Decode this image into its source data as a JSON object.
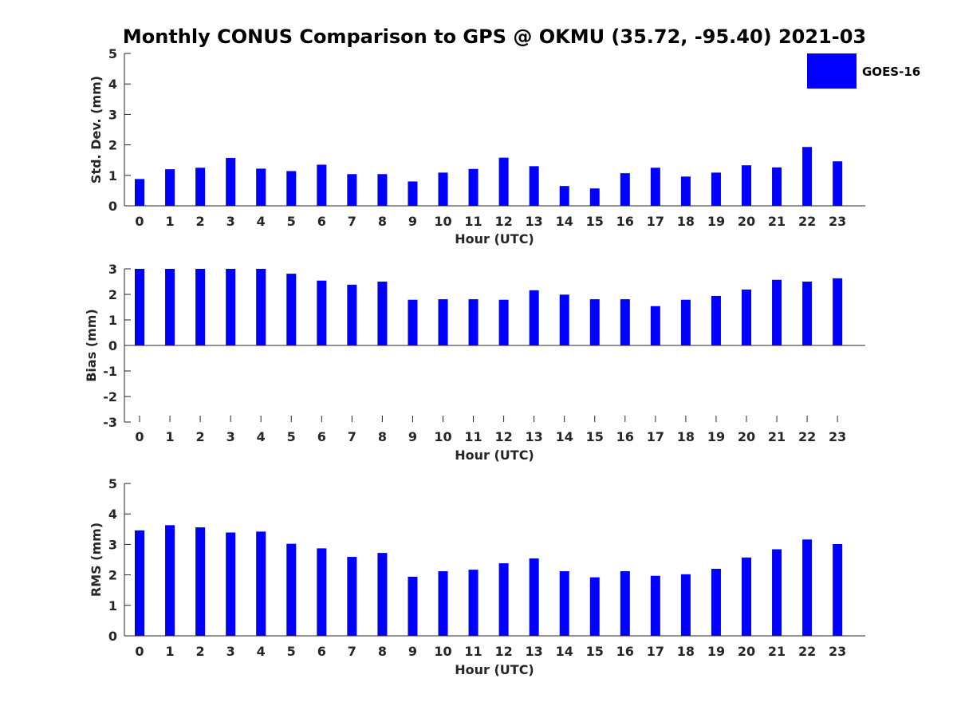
{
  "title": "Monthly CONUS Comparison to GPS @ OKMU (35.72, -95.40) 2021-03",
  "legend": {
    "label": "GOES-16",
    "location": "top-right"
  },
  "colors": {
    "bar": "#0000ff",
    "axis": "#262626",
    "title": "#000000"
  },
  "chart_data": [
    {
      "type": "bar",
      "title": "",
      "xlabel": "Hour (UTC)",
      "ylabel": "Std. Dev. (mm)",
      "ylim": [
        0,
        5
      ],
      "yticks": [
        0,
        1,
        2,
        3,
        4,
        5
      ],
      "categories": [
        "0",
        "1",
        "2",
        "3",
        "4",
        "5",
        "6",
        "7",
        "8",
        "9",
        "10",
        "11",
        "12",
        "13",
        "14",
        "15",
        "16",
        "17",
        "18",
        "19",
        "20",
        "21",
        "22",
        "23"
      ],
      "series": [
        {
          "name": "GOES-16",
          "values": [
            0.88,
            1.2,
            1.25,
            1.57,
            1.22,
            1.14,
            1.35,
            1.04,
            1.04,
            0.8,
            1.09,
            1.21,
            1.58,
            1.3,
            0.65,
            0.57,
            1.07,
            1.25,
            0.96,
            1.09,
            1.33,
            1.26,
            1.93,
            1.46
          ]
        }
      ],
      "grid": false
    },
    {
      "type": "bar",
      "title": "",
      "xlabel": "Hour (UTC)",
      "ylabel": "Bias (mm)",
      "ylim": [
        -3,
        3
      ],
      "yticks": [
        -3,
        -2,
        -1,
        0,
        1,
        2,
        3
      ],
      "categories": [
        "0",
        "1",
        "2",
        "3",
        "4",
        "5",
        "6",
        "7",
        "8",
        "9",
        "10",
        "11",
        "12",
        "13",
        "14",
        "15",
        "16",
        "17",
        "18",
        "19",
        "20",
        "21",
        "22",
        "23"
      ],
      "series": [
        {
          "name": "GOES-16",
          "values": [
            3.0,
            3.0,
            3.0,
            3.0,
            3.0,
            2.81,
            2.54,
            2.38,
            2.5,
            1.79,
            1.81,
            1.81,
            1.79,
            2.16,
            1.99,
            1.81,
            1.81,
            1.54,
            1.79,
            1.94,
            2.19,
            2.57,
            2.5,
            2.63
          ]
        }
      ],
      "grid": false
    },
    {
      "type": "bar",
      "title": "",
      "xlabel": "Hour (UTC)",
      "ylabel": "RMS (mm)",
      "ylim": [
        0,
        5
      ],
      "yticks": [
        0,
        1,
        2,
        3,
        4,
        5
      ],
      "categories": [
        "0",
        "1",
        "2",
        "3",
        "4",
        "5",
        "6",
        "7",
        "8",
        "9",
        "10",
        "11",
        "12",
        "13",
        "14",
        "15",
        "16",
        "17",
        "18",
        "19",
        "20",
        "21",
        "22",
        "23"
      ],
      "series": [
        {
          "name": "GOES-16",
          "values": [
            3.46,
            3.63,
            3.56,
            3.39,
            3.42,
            3.02,
            2.87,
            2.59,
            2.72,
            1.94,
            2.12,
            2.17,
            2.38,
            2.54,
            2.12,
            1.92,
            2.12,
            1.97,
            2.02,
            2.2,
            2.57,
            2.84,
            3.16,
            3.01
          ]
        }
      ],
      "grid": false
    }
  ]
}
